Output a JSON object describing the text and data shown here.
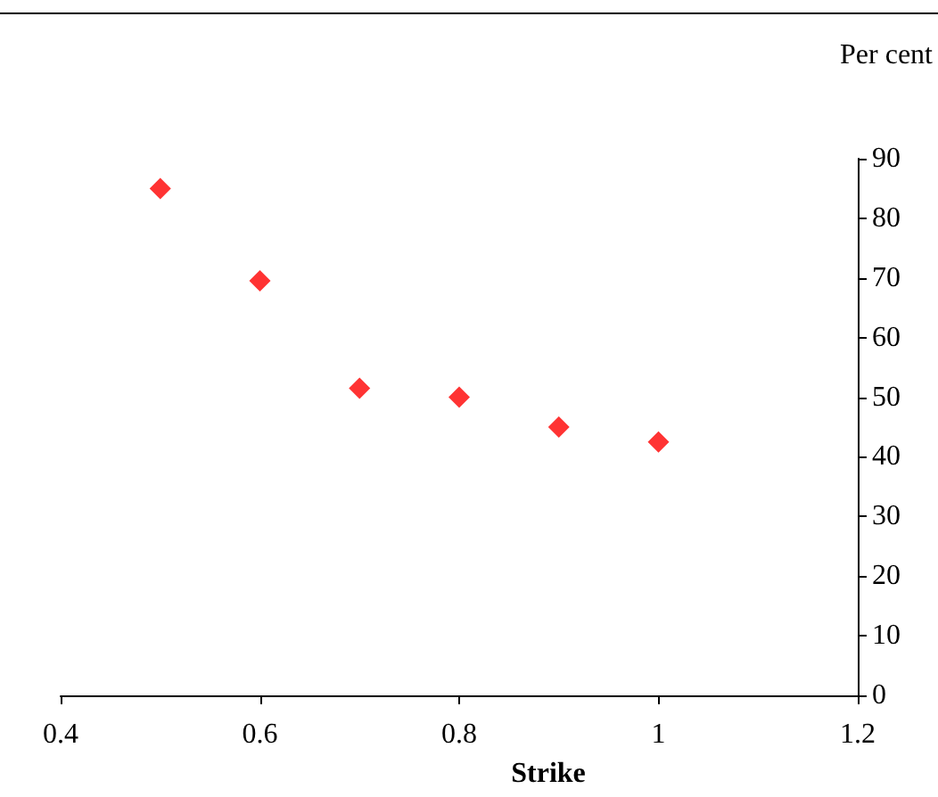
{
  "chart_data": {
    "type": "scatter",
    "xlabel": "Strike",
    "ylabel": "Per cent",
    "x": [
      0.5,
      0.6,
      0.7,
      0.8,
      0.9,
      1.0
    ],
    "series": [
      {
        "color": "#ff0000",
        "values": [
          85,
          69.5,
          51.5,
          50,
          45,
          42.5
        ]
      }
    ],
    "xlim": [
      0.4,
      1.2
    ],
    "xticks": [
      0.4,
      0.6,
      0.8,
      1,
      1.2
    ],
    "ylim": [
      0,
      90
    ],
    "yticks": [
      0,
      10,
      20,
      30,
      40,
      50,
      60,
      70,
      80,
      90
    ],
    "marker": "diamond",
    "grid": false
  }
}
